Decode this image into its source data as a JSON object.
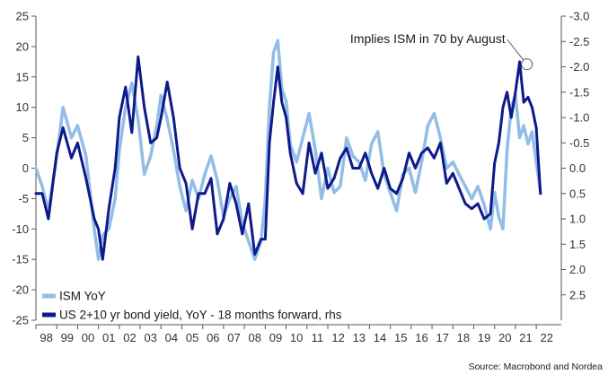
{
  "chart_data": {
    "type": "line",
    "title": "",
    "xlabel": "",
    "ylabel": "",
    "ylim_left": [
      -25,
      25
    ],
    "ylim_right": [
      3.0,
      -3.0
    ],
    "right_axis_inverted": true,
    "grid": false,
    "legend_placement": "bottom-left",
    "y_ticks_left": [
      "-25",
      "-20",
      "-15",
      "-10",
      "-5",
      "0",
      "5",
      "10",
      "15",
      "20",
      "25"
    ],
    "y_ticks_right": [
      "-3.0",
      "-2.5",
      "-2.0",
      "-1.5",
      "-1.0",
      "-0.5",
      "0.0",
      "0.5",
      "1.0",
      "1.5",
      "2.0",
      "2.5"
    ],
    "x_ticks": [
      "98",
      "99",
      "00",
      "01",
      "02",
      "03",
      "04",
      "05",
      "06",
      "07",
      "08",
      "09",
      "10",
      "11",
      "12",
      "13",
      "14",
      "15",
      "16",
      "17",
      "18",
      "19",
      "20",
      "21",
      "22"
    ],
    "x_start_year": 1998,
    "x_end_year": 2023.2,
    "series": [
      {
        "name": "ISM YoY",
        "axis": "left",
        "color": "#92bde8",
        "x": [
          1998.0,
          1998.3,
          1998.6,
          1999.0,
          1999.3,
          1999.7,
          2000.0,
          2000.4,
          2000.8,
          2001.0,
          2001.2,
          2001.5,
          2001.8,
          2002.0,
          2002.3,
          2002.6,
          2002.9,
          2003.2,
          2003.5,
          2003.8,
          2004.0,
          2004.3,
          2004.6,
          2004.9,
          2005.2,
          2005.5,
          2005.8,
          2006.1,
          2006.4,
          2006.7,
          2007.0,
          2007.3,
          2007.6,
          2007.9,
          2008.2,
          2008.5,
          2008.8,
          2009.0,
          2009.2,
          2009.4,
          2009.6,
          2009.8,
          2010.0,
          2010.2,
          2010.5,
          2010.8,
          2011.1,
          2011.4,
          2011.7,
          2012.0,
          2012.3,
          2012.6,
          2012.9,
          2013.2,
          2013.5,
          2013.8,
          2014.1,
          2014.4,
          2014.7,
          2015.0,
          2015.3,
          2015.6,
          2015.9,
          2016.2,
          2016.5,
          2016.8,
          2017.1,
          2017.4,
          2017.7,
          2018.0,
          2018.3,
          2018.6,
          2018.9,
          2019.2,
          2019.5,
          2019.8,
          2020.0,
          2020.2,
          2020.4,
          2020.6,
          2020.8,
          2021.0,
          2021.2,
          2021.4,
          2021.6,
          2021.8,
          2022.0,
          2022.2
        ],
        "values": [
          0,
          -3,
          -7,
          2,
          10,
          5,
          7,
          2,
          -10,
          -15,
          -11,
          -10,
          -5,
          3,
          10,
          14,
          8,
          -1,
          2,
          7,
          12,
          8,
          3,
          -3,
          -7,
          -2,
          -5,
          -1,
          2,
          -2,
          -8,
          -5,
          -3,
          -9,
          -12,
          -15,
          -12,
          -5,
          10,
          19,
          21,
          13,
          11,
          4,
          1,
          5,
          9,
          3,
          -5,
          0,
          -4,
          -3,
          5,
          2,
          1,
          -2,
          4,
          6,
          -1,
          -4,
          -7,
          -1,
          0,
          -4,
          1,
          7,
          9,
          5,
          0,
          1,
          -1,
          -3,
          -5,
          -3,
          -6,
          -10,
          -4,
          -8,
          -10,
          3,
          10,
          12,
          5,
          7,
          4,
          6,
          1,
          -4
        ]
      },
      {
        "name": "US 2+10 yr bond yield, YoY - 18 months forward, rhs",
        "axis": "right",
        "color": "#0f1a8a",
        "x": [
          1998.0,
          1998.3,
          1998.6,
          1999.0,
          1999.3,
          1999.7,
          2000.0,
          2000.4,
          2000.8,
          2001.0,
          2001.2,
          2001.5,
          2001.8,
          2002.0,
          2002.3,
          2002.6,
          2002.9,
          2003.2,
          2003.5,
          2003.8,
          2004.0,
          2004.3,
          2004.6,
          2004.9,
          2005.2,
          2005.5,
          2005.8,
          2006.1,
          2006.4,
          2006.7,
          2007.0,
          2007.3,
          2007.6,
          2007.9,
          2008.2,
          2008.5,
          2008.8,
          2009.0,
          2009.2,
          2009.4,
          2009.6,
          2009.8,
          2010.0,
          2010.2,
          2010.5,
          2010.8,
          2011.1,
          2011.4,
          2011.7,
          2012.0,
          2012.3,
          2012.6,
          2012.9,
          2013.2,
          2013.5,
          2013.8,
          2014.1,
          2014.4,
          2014.7,
          2015.0,
          2015.3,
          2015.6,
          2015.9,
          2016.2,
          2016.5,
          2016.8,
          2017.1,
          2017.4,
          2017.7,
          2018.0,
          2018.3,
          2018.6,
          2018.9,
          2019.2,
          2019.5,
          2019.8,
          2020.0,
          2020.2,
          2020.4,
          2020.6,
          2020.8,
          2021.0,
          2021.2,
          2021.4,
          2021.6,
          2021.8,
          2022.0,
          2022.2
        ],
        "values": [
          0.5,
          0.5,
          1.0,
          -0.3,
          -0.8,
          -0.2,
          -0.5,
          0.2,
          1.0,
          1.2,
          1.8,
          0.8,
          0.0,
          -1.0,
          -1.6,
          -0.7,
          -2.2,
          -1.2,
          -0.5,
          -0.6,
          -1.0,
          -1.7,
          -1.0,
          0.0,
          0.3,
          1.2,
          0.5,
          0.5,
          0.2,
          1.3,
          1.0,
          0.3,
          0.7,
          1.3,
          0.7,
          1.7,
          1.4,
          1.4,
          -0.5,
          -1.3,
          -2.0,
          -1.3,
          -1.0,
          -0.3,
          0.3,
          0.5,
          -0.5,
          0.1,
          -0.3,
          0.4,
          0.2,
          -0.2,
          -0.4,
          0.0,
          0.0,
          -0.3,
          0.1,
          0.4,
          0.0,
          0.4,
          0.5,
          0.2,
          -0.3,
          0.0,
          -0.3,
          -0.4,
          -0.2,
          -0.5,
          0.3,
          0.1,
          0.4,
          0.7,
          0.8,
          0.7,
          1.0,
          0.9,
          -0.1,
          -0.5,
          -1.2,
          -1.5,
          -1.0,
          -1.5,
          -2.1,
          -1.3,
          -1.4,
          -1.2,
          -0.8,
          0.5
        ]
      }
    ],
    "annotations": [
      {
        "text": "Implies ISM in 70 by August",
        "x": 2021.55,
        "y_right": -2.05
      }
    ],
    "source": "Source: Macrobond and Nordea"
  }
}
